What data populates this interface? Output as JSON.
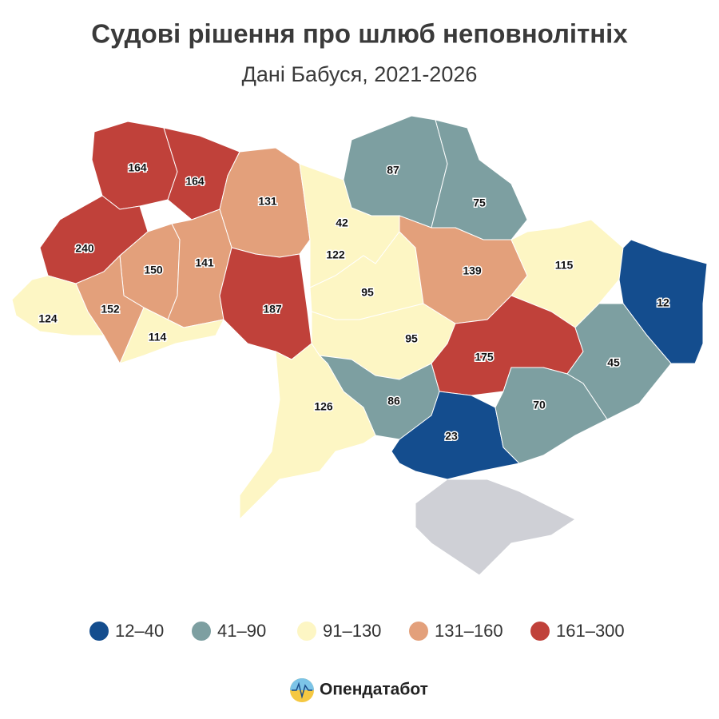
{
  "chart_data": {
    "type": "choropleth",
    "title": "Судові рішення про шлюб неповнолітніх",
    "subtitle": "Дані Бабуся, 2021-2026",
    "values": [
      164,
      164,
      131,
      240,
      150,
      141,
      124,
      152,
      114,
      187,
      42,
      122,
      95,
      95,
      87,
      75,
      139,
      115,
      12,
      175,
      45,
      86,
      126,
      23,
      70
    ],
    "legend": [
      {
        "label": "12–40",
        "min": 12,
        "max": 40,
        "color": "#144d8e"
      },
      {
        "label": "41–90",
        "min": 41,
        "max": 90,
        "color": "#7d9fa1"
      },
      {
        "label": "91–130",
        "min": 91,
        "max": 130,
        "color": "#fdf6c4"
      },
      {
        "label": "131–160",
        "min": 131,
        "max": 160,
        "color": "#e3a07b"
      },
      {
        "label": "161–300",
        "min": 161,
        "max": 300,
        "color": "#c0413a"
      }
    ],
    "no_data_color": "#cfd0d6",
    "brand": "Опендатабот"
  }
}
